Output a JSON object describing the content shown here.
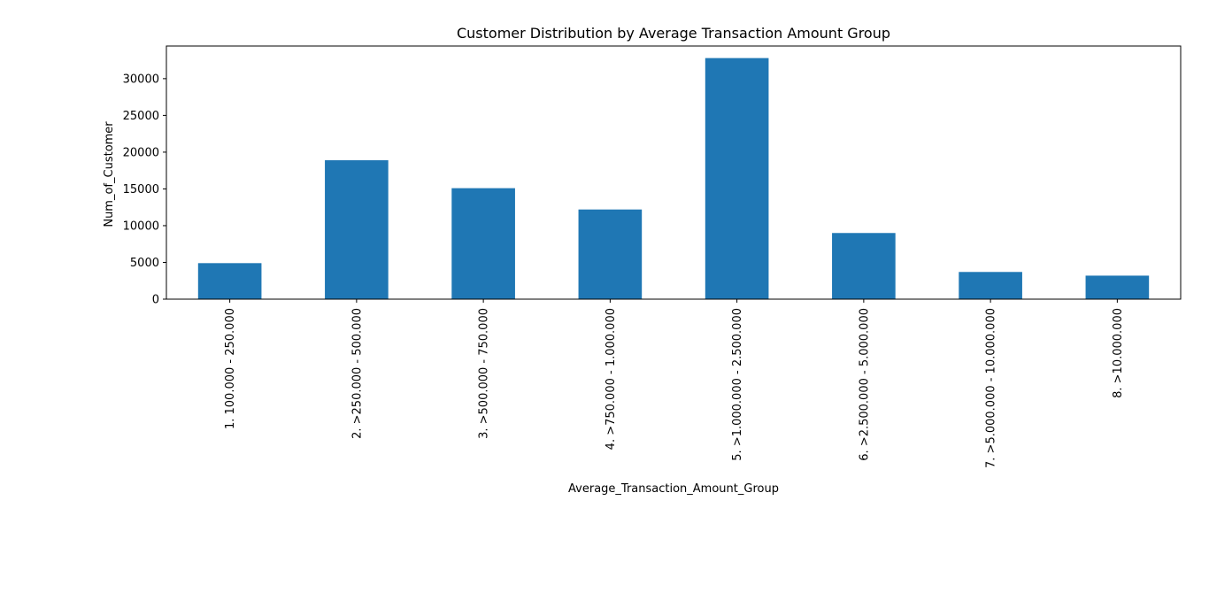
{
  "chart_data": {
    "type": "bar",
    "title": "Customer Distribution by Average Transaction Amount Group",
    "xlabel": "Average_Transaction_Amount_Group",
    "ylabel": "Num_of_Customer",
    "categories": [
      "1. 100.000 - 250.000",
      "2. >250.000 - 500.000",
      "3. >500.000 - 750.000",
      "4. >750.000 - 1.000.000",
      "5. >1.000.000 - 2.500.000",
      "6. >2.500.000 - 5.000.000",
      "7. >5.000.000 - 10.000.000",
      "8. >10.000.000"
    ],
    "values": [
      4900,
      18900,
      15100,
      12200,
      32800,
      9000,
      3700,
      3200
    ],
    "ylim": [
      0,
      34440
    ],
    "yticks": [
      0,
      5000,
      10000,
      15000,
      20000,
      25000,
      30000
    ],
    "grid": false,
    "legend": "none",
    "bar_color": "#1f77b4"
  }
}
